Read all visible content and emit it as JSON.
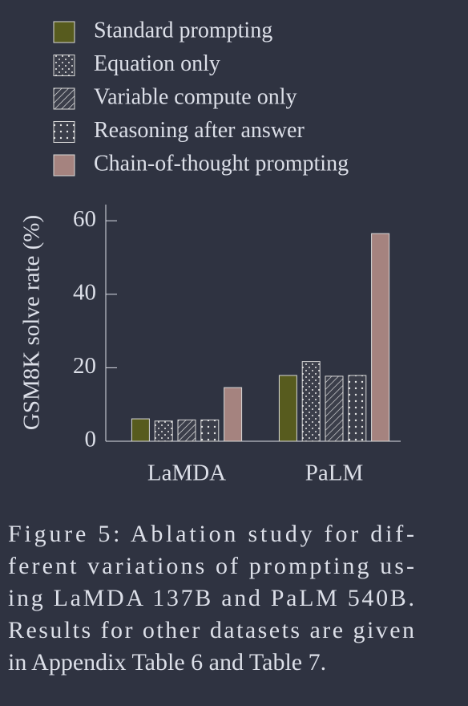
{
  "chart_data": {
    "type": "bar",
    "ylabel": "GSM8K solve rate (%)",
    "categories": [
      "LaMDA",
      "PaLM"
    ],
    "series": [
      {
        "name": "Standard prompting",
        "color": "#575b1e",
        "pattern": "none",
        "values": [
          6.1,
          17.9
        ]
      },
      {
        "name": "Equation only",
        "color": "#3b3e4a",
        "pattern": "dots-staggered",
        "values": [
          5.5,
          21.7
        ]
      },
      {
        "name": "Variable compute only",
        "color": "#3b3e4a",
        "pattern": "hatch",
        "values": [
          5.8,
          17.7
        ]
      },
      {
        "name": "Reasoning after answer",
        "color": "#3b3e4a",
        "pattern": "dots-grid",
        "values": [
          5.8,
          17.9
        ]
      },
      {
        "name": "Chain-of-thought prompting",
        "color": "#a5837f",
        "pattern": "none",
        "values": [
          14.6,
          56.5
        ]
      }
    ],
    "ylim": [
      0,
      64.4
    ],
    "yticks": [
      0,
      20,
      40,
      60
    ],
    "legend": "top"
  },
  "caption": {
    "lines": [
      "Figure 5:   Ablation study for dif-",
      "ferent variations of prompting us-",
      "ing LaMDA 137B and PaLM 540B.",
      "Results for other datasets are given",
      "in Appendix Table 6 and Table 7."
    ]
  }
}
